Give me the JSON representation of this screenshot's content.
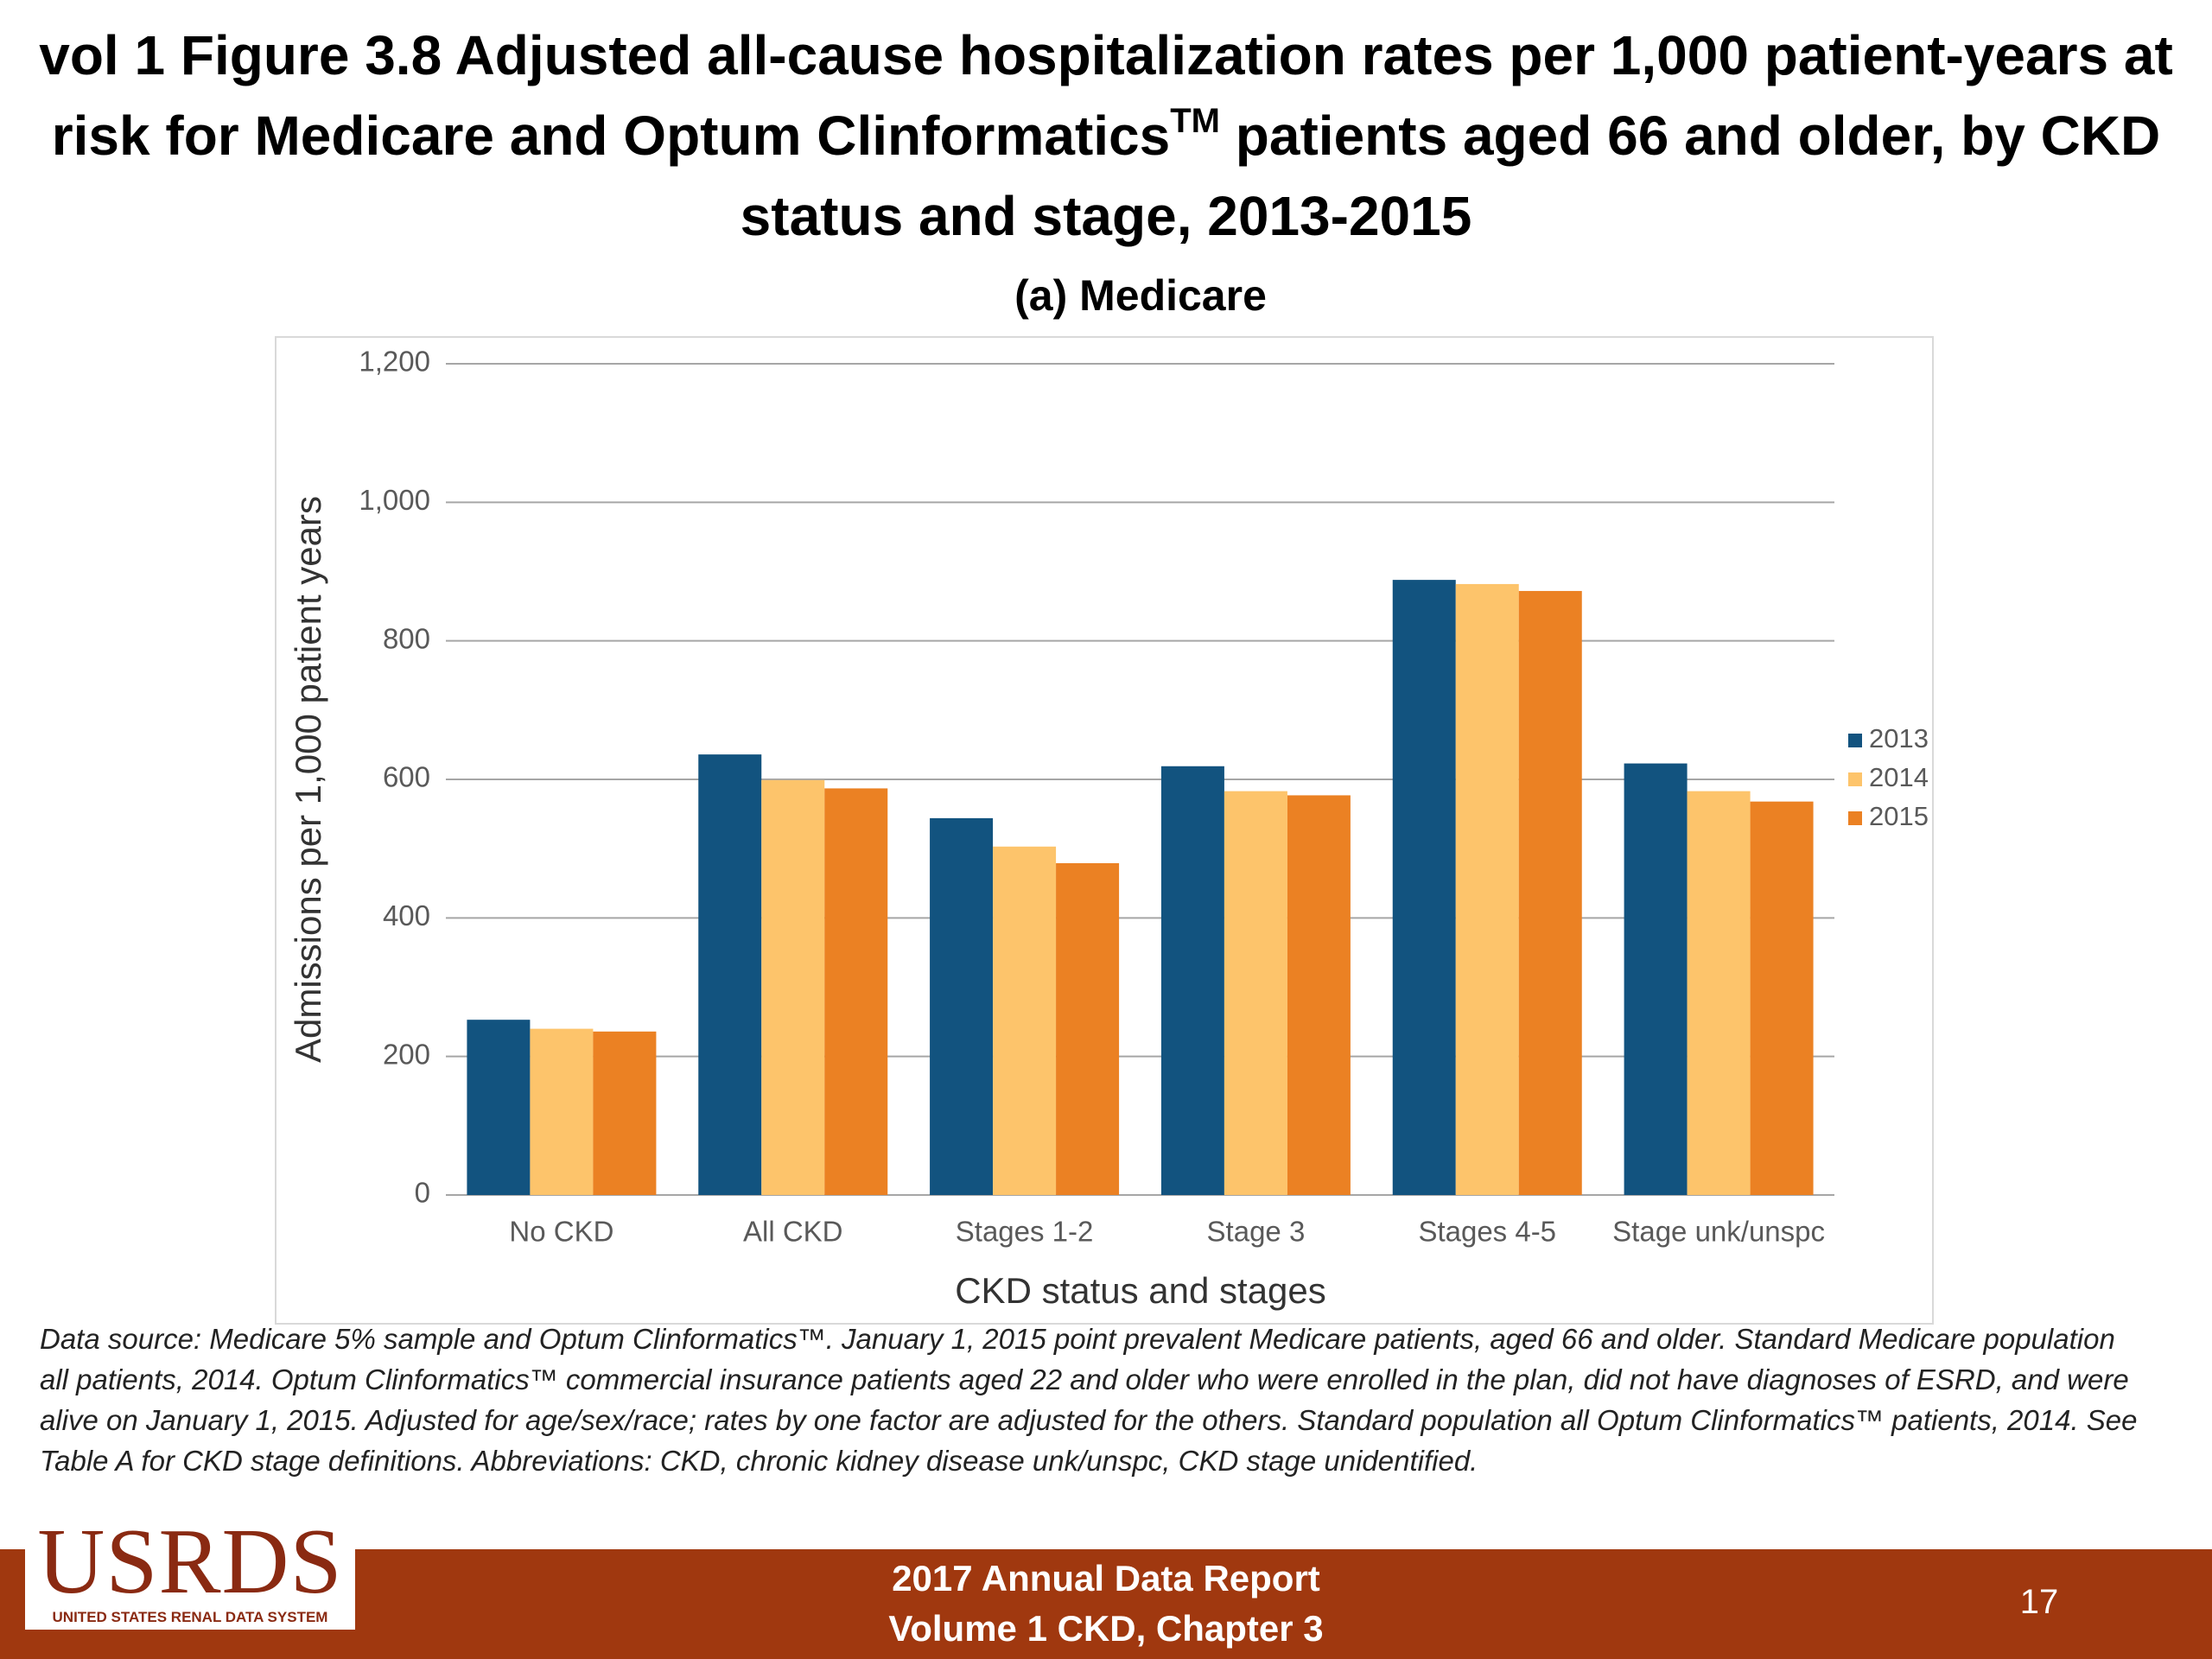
{
  "title": [
    "vol 1 Figure 3.8 Adjusted all-cause hospitalization rates per 1,000 patient-years at risk for Medicare and Optum Clinformatics",
    "TM",
    " patients aged 66 and older, by CKD status and stage, 2013-2015"
  ],
  "chart_data": {
    "type": "bar",
    "subtitle": "(a)  Medicare",
    "x_label": "CKD status and stages",
    "y_label": "Admissions per 1,000 patient years",
    "categories": [
      "No CKD",
      "All CKD",
      "Stages 1-2",
      "Stage 3",
      "Stages 4-5",
      "Stage unk/unspc"
    ],
    "series": [
      {
        "name": "2013",
        "color": "#12537f",
        "values": [
          253,
          636,
          544,
          619,
          888,
          623
        ]
      },
      {
        "name": "2014",
        "color": "#fdc46b",
        "values": [
          240,
          599,
          503,
          583,
          882,
          583
        ]
      },
      {
        "name": "2015",
        "color": "#eb8123",
        "values": [
          236,
          587,
          479,
          577,
          872,
          568
        ]
      }
    ],
    "ylim": [
      0,
      1200
    ],
    "yticks": [
      0,
      200,
      400,
      600,
      800,
      {
        "value": 1000,
        "label": "1,000"
      },
      {
        "value": 1200,
        "label": "1,200"
      }
    ],
    "grid": true,
    "legend": "right"
  },
  "footnote": "Data source: Medicare 5% sample and Optum Clinformatics™. January 1, 2015 point prevalent Medicare patients, aged 66 and older. Standard Medicare population all patients, 2014. Optum Clinformatics™ commercial insurance patients aged 22 and older who were enrolled in the plan, did not have diagnoses of ESRD, and were alive on January 1, 2015. Adjusted for age/sex/race; rates by one factor are adjusted for the others. Standard population all Optum Clinformatics™ patients, 2014. See Table A for CKD stage definitions. Abbreviations: CKD, chronic kidney disease unk/unspc, CKD stage unidentified.",
  "logo": {
    "name": "USRDS",
    "tagline": "UNITED STATES RENAL DATA SYSTEM"
  },
  "footer": {
    "lines": [
      "2017 Annual Data Report",
      "Volume 1 CKD, Chapter 3"
    ],
    "page": "17"
  }
}
